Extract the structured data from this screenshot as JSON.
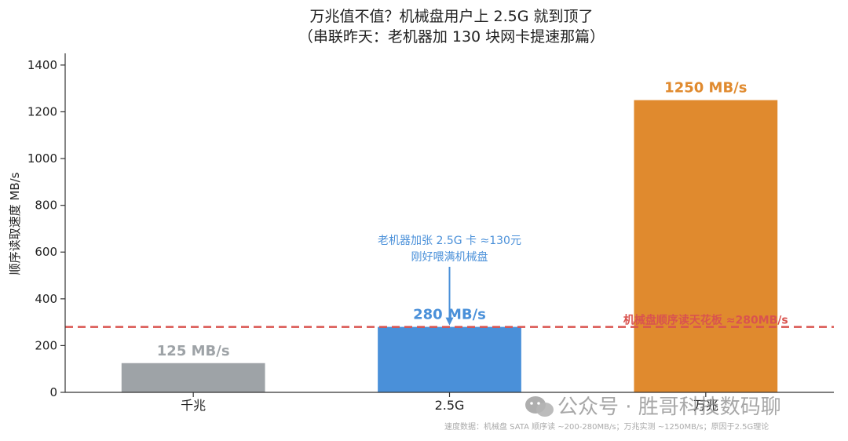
{
  "chart_data": {
    "type": "bar",
    "title": "万兆值不值？机械盘用户上 2.5G 就到顶了",
    "subtitle": "（串联昨天：老机器加 130 块网卡提速那篇）",
    "xlabel": "",
    "ylabel": "顺序读取速度 MB/s",
    "ylim": [
      0,
      1450
    ],
    "yticks": [
      0,
      200,
      400,
      600,
      800,
      1000,
      1200,
      1400
    ],
    "categories": [
      "千兆",
      "2.5G",
      "万兆"
    ],
    "values": [
      125,
      280,
      1250
    ],
    "colors": [
      "#9ea3a7",
      "#4a90d9",
      "#e08a2e"
    ],
    "value_labels": [
      "125 MB/s",
      "280 MB/s",
      "1250 MB/s"
    ],
    "reference_line": {
      "value": 280,
      "color": "#d9534f",
      "label": "机械盘顺序读天花板 ≈280MB/s"
    },
    "annotation": {
      "lines": [
        "老机器加张 2.5G 卡 ≈130元",
        "刚好喂满机械盘"
      ],
      "target_category": "2.5G",
      "color": "#4a90d9"
    },
    "grid": false,
    "legend": "none"
  },
  "watermark": "公众号 · 胜哥科技数码聊",
  "footnote": "速度数据：机械盘 SATA 顺序读 ~200-280MB/s；万兆实测 ~1250MB/s；原因于2.5G理论"
}
